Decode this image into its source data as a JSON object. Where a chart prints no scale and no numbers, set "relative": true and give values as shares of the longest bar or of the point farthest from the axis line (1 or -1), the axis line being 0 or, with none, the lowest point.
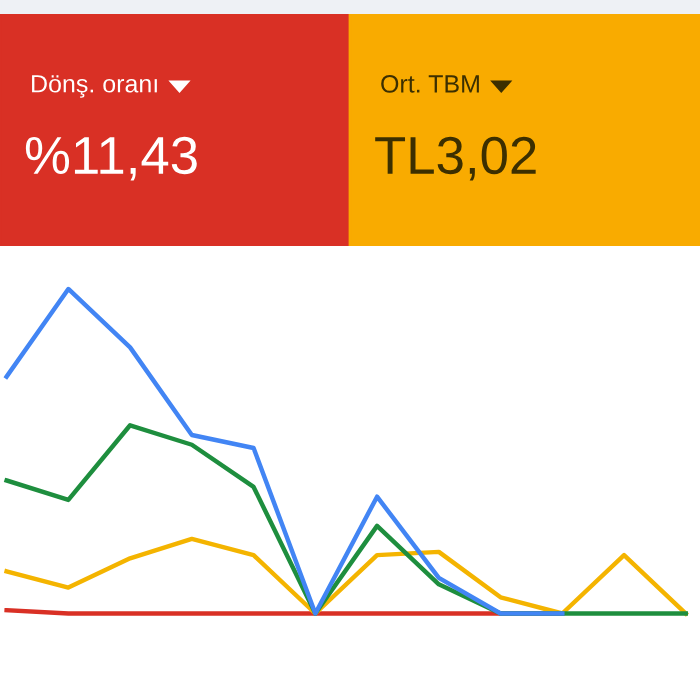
{
  "chart_data": [
    {
      "type": "other",
      "annotations": [
        "Dönş. oranı",
        "%11,43",
        "Ort. TBM",
        "TL3,02"
      ],
      "colors": [
        "#d93025",
        "#f9ab00"
      ]
    },
    {
      "type": "line",
      "relative": true,
      "categories": [
        null,
        null,
        null,
        null,
        null,
        null,
        null,
        null,
        null,
        null,
        null,
        null
      ],
      "legend": false,
      "marker": "none",
      "line_style": "solid",
      "series": [
        {
          "color": "#4285f4",
          "values": [
            0.73,
            1,
            0.82,
            0.55,
            0.51,
            0,
            0.36,
            0.11,
            0,
            0,
            null,
            null
          ]
        },
        {
          "color": "#1e8e3e",
          "values": [
            0.41,
            0.35,
            0.58,
            0.52,
            0.39,
            0,
            0.27,
            0.09,
            0,
            0,
            0,
            0
          ]
        },
        {
          "color": "#f4b400",
          "values": [
            0.13,
            0.08,
            0.17,
            0.23,
            0.18,
            0,
            0.18,
            0.19,
            0.05,
            0,
            0.18,
            0
          ]
        },
        {
          "color": "#d93025",
          "values": [
            0.01,
            0,
            0,
            0,
            0,
            0,
            0,
            0,
            0,
            0,
            null,
            null
          ]
        }
      ]
    }
  ]
}
